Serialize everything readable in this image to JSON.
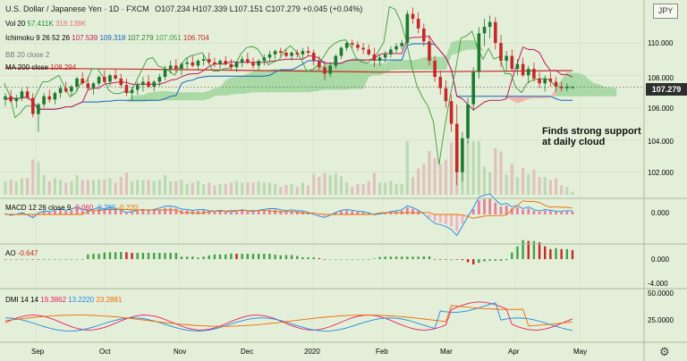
{
  "header": {
    "symbol": "U.S. Dollar / Japanese Yen · 1D · FXCM",
    "ohlc": "O107.234  H107.339  L107.151  C107.279  +0.045 (+0.04%)"
  },
  "currency_box": "JPY",
  "last_price": "107.279",
  "annotation": [
    "Finds strong support",
    "at daily cloud"
  ],
  "indicators": {
    "vol": {
      "label": "Vol 20",
      "v1": "57.411K",
      "v2": "318.138K",
      "c1": "#1e8e3e",
      "c2": "#e57373"
    },
    "ichimoku": {
      "label": "Ichimoku 9 26 52 26",
      "v": [
        "107.539",
        "109.318",
        "107.279",
        "107.051",
        "106.704"
      ],
      "colors": [
        "#c2185b",
        "#1565c0",
        "#2e7d32",
        "#43a047",
        "#c62828"
      ]
    },
    "bb": {
      "label": "BB 20 close 2"
    },
    "ma": {
      "label": "MA 200 close",
      "v": "108.294",
      "c": "#c62828"
    },
    "macd": {
      "label": "MACD 12 26 close 9",
      "v": [
        "-0.060",
        "-0.280",
        "-0.220"
      ],
      "colors": [
        "#e91e63",
        "#1e88e5",
        "#ef6c00"
      ]
    },
    "ao": {
      "label": "AO",
      "v": "-0.647",
      "c": "#c62828"
    },
    "dmi": {
      "label": "DMI 14 14",
      "v": [
        "19.3862",
        "13.2220",
        "23.2881"
      ],
      "colors": [
        "#e91e63",
        "#1e88e5",
        "#ef6c00"
      ]
    }
  },
  "axes": {
    "price_ticks": [
      "110.000",
      "108.000",
      "106.000",
      "104.000",
      "102.000"
    ],
    "macd_ticks": [
      "0.000"
    ],
    "ao_ticks": [
      "0.000",
      "-4.000"
    ],
    "dmi_ticks": [
      "50.0000",
      "25.0000"
    ],
    "x_labels": [
      "Sep",
      "Oct",
      "Nov",
      "Dec",
      "2020",
      "Feb",
      "Mar",
      "Apr",
      "May"
    ]
  },
  "chart_data": {
    "type": "candlestick",
    "price_range": [
      100.6,
      112.0
    ],
    "ohlc": [
      [
        106.5,
        106.9,
        106.1,
        106.7
      ],
      [
        106.7,
        107.1,
        106.3,
        106.4
      ],
      [
        106.4,
        106.8,
        106.0,
        106.6
      ],
      [
        106.6,
        107.2,
        106.4,
        107.0
      ],
      [
        107.0,
        107.3,
        106.5,
        106.6
      ],
      [
        106.6,
        106.9,
        105.4,
        105.6
      ],
      [
        105.6,
        106.3,
        104.5,
        106.2
      ],
      [
        106.2,
        106.9,
        106.0,
        106.7
      ],
      [
        106.7,
        107.1,
        106.3,
        106.5
      ],
      [
        106.5,
        107.0,
        106.2,
        106.9
      ],
      [
        106.9,
        107.4,
        106.6,
        107.2
      ],
      [
        107.2,
        107.6,
        106.9,
        107.0
      ],
      [
        107.0,
        107.4,
        106.7,
        107.3
      ],
      [
        107.3,
        107.9,
        107.0,
        107.8
      ],
      [
        107.8,
        108.2,
        107.4,
        107.5
      ],
      [
        107.5,
        107.9,
        107.1,
        107.2
      ],
      [
        107.2,
        107.6,
        106.8,
        107.5
      ],
      [
        107.5,
        108.0,
        107.3,
        107.9
      ],
      [
        107.9,
        108.3,
        107.5,
        107.6
      ],
      [
        107.6,
        108.1,
        107.3,
        108.0
      ],
      [
        108.0,
        108.4,
        107.7,
        107.8
      ],
      [
        107.8,
        108.1,
        107.2,
        107.4
      ],
      [
        107.4,
        107.8,
        106.7,
        106.9
      ],
      [
        106.9,
        107.3,
        106.5,
        107.1
      ],
      [
        107.1,
        107.6,
        106.8,
        107.4
      ],
      [
        107.4,
        107.9,
        107.0,
        107.6
      ],
      [
        107.6,
        108.0,
        107.2,
        107.3
      ],
      [
        107.3,
        107.7,
        107.0,
        107.6
      ],
      [
        107.6,
        108.1,
        107.3,
        107.9
      ],
      [
        107.9,
        108.6,
        107.7,
        108.4
      ],
      [
        108.4,
        108.9,
        108.1,
        108.6
      ],
      [
        108.6,
        109.0,
        108.2,
        108.4
      ],
      [
        108.4,
        108.8,
        108.0,
        108.7
      ],
      [
        108.7,
        109.1,
        108.4,
        108.8
      ],
      [
        108.8,
        109.2,
        108.5,
        108.6
      ],
      [
        108.6,
        109.0,
        108.3,
        108.9
      ],
      [
        108.9,
        109.3,
        108.6,
        109.0
      ],
      [
        109.0,
        109.4,
        108.7,
        108.8
      ],
      [
        108.8,
        109.1,
        108.5,
        108.7
      ],
      [
        108.7,
        109.0,
        108.4,
        108.9
      ],
      [
        108.9,
        109.2,
        108.6,
        108.7
      ],
      [
        108.7,
        109.0,
        108.3,
        108.5
      ],
      [
        108.5,
        108.9,
        108.2,
        108.8
      ],
      [
        108.8,
        109.2,
        108.5,
        109.0
      ],
      [
        109.0,
        109.4,
        108.7,
        108.8
      ],
      [
        108.8,
        109.1,
        108.4,
        108.6
      ],
      [
        108.6,
        109.0,
        108.3,
        108.9
      ],
      [
        108.9,
        109.3,
        108.6,
        109.1
      ],
      [
        109.1,
        109.5,
        108.8,
        109.3
      ],
      [
        109.3,
        109.6,
        109.0,
        109.5
      ],
      [
        109.5,
        109.7,
        109.2,
        109.4
      ],
      [
        109.4,
        109.6,
        109.1,
        109.2
      ],
      [
        109.2,
        109.5,
        108.9,
        109.4
      ],
      [
        109.4,
        109.6,
        109.1,
        109.3
      ],
      [
        109.3,
        109.7,
        109.0,
        109.5
      ],
      [
        109.5,
        109.8,
        109.2,
        109.4
      ],
      [
        109.4,
        109.6,
        108.6,
        108.9
      ],
      [
        108.9,
        109.2,
        108.3,
        108.5
      ],
      [
        108.5,
        108.9,
        107.7,
        108.1
      ],
      [
        108.1,
        108.8,
        107.9,
        108.6
      ],
      [
        108.6,
        109.3,
        108.4,
        109.2
      ],
      [
        109.2,
        109.8,
        109.0,
        109.7
      ],
      [
        109.7,
        110.1,
        109.5,
        110.0
      ],
      [
        110.0,
        110.2,
        109.7,
        109.9
      ],
      [
        109.9,
        110.1,
        109.5,
        109.7
      ],
      [
        109.7,
        110.0,
        109.3,
        109.6
      ],
      [
        109.6,
        109.9,
        109.2,
        109.3
      ],
      [
        109.3,
        109.7,
        108.5,
        108.9
      ],
      [
        108.9,
        109.3,
        108.6,
        109.1
      ],
      [
        109.1,
        109.5,
        108.8,
        109.3
      ],
      [
        109.3,
        109.8,
        109.1,
        109.6
      ],
      [
        109.6,
        110.0,
        109.4,
        109.8
      ],
      [
        109.8,
        110.2,
        109.6,
        110.0
      ],
      [
        110.0,
        112.0,
        109.8,
        111.8
      ],
      [
        111.8,
        112.2,
        111.2,
        111.5
      ],
      [
        111.5,
        111.9,
        110.6,
        110.9
      ],
      [
        110.9,
        111.2,
        109.8,
        110.1
      ],
      [
        110.1,
        110.5,
        108.6,
        108.9
      ],
      [
        108.9,
        109.2,
        107.6,
        107.9
      ],
      [
        107.9,
        108.3,
        106.8,
        107.2
      ],
      [
        107.2,
        107.7,
        106.0,
        106.4
      ],
      [
        106.4,
        106.8,
        104.5,
        105.0
      ],
      [
        105.0,
        106.2,
        101.2,
        102.0
      ],
      [
        102.0,
        104.5,
        101.4,
        104.1
      ],
      [
        104.1,
        106.6,
        103.8,
        106.2
      ],
      [
        106.2,
        108.5,
        105.8,
        108.2
      ],
      [
        108.2,
        111.0,
        107.8,
        110.6
      ],
      [
        110.6,
        111.5,
        109.8,
        111.0
      ],
      [
        111.0,
        111.7,
        110.3,
        111.3
      ],
      [
        111.3,
        111.6,
        109.6,
        110.0
      ],
      [
        110.0,
        110.5,
        108.5,
        108.9
      ],
      [
        108.9,
        109.5,
        108.3,
        109.2
      ],
      [
        109.2,
        109.6,
        108.2,
        108.4
      ],
      [
        108.4,
        109.0,
        108.0,
        108.7
      ],
      [
        108.7,
        109.1,
        107.9,
        108.0
      ],
      [
        108.0,
        108.6,
        107.5,
        108.4
      ],
      [
        108.4,
        108.8,
        107.6,
        107.8
      ],
      [
        107.8,
        108.2,
        107.2,
        107.5
      ],
      [
        107.5,
        108.0,
        107.0,
        107.8
      ],
      [
        107.8,
        108.2,
        107.3,
        107.6
      ],
      [
        107.6,
        107.9,
        107.0,
        107.3
      ],
      [
        107.3,
        107.6,
        107.0,
        107.2
      ],
      [
        107.2,
        107.5,
        107.0,
        107.3
      ],
      [
        107.234,
        107.339,
        107.151,
        107.279
      ]
    ],
    "ma200": [
      108.45,
      108.35,
      108.2,
      108.29
    ],
    "x_labels": [
      "Sep",
      "Oct",
      "Nov",
      "Dec",
      "2020",
      "Feb",
      "Mar",
      "Apr",
      "May"
    ],
    "price_ticks": [
      110,
      108,
      106,
      104,
      102
    ]
  }
}
